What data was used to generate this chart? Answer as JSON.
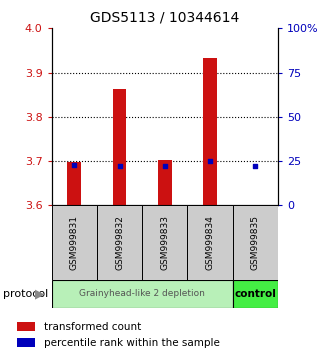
{
  "title": "GDS5113 / 10344614",
  "samples": [
    "GSM999831",
    "GSM999832",
    "GSM999833",
    "GSM999834",
    "GSM999835"
  ],
  "transformed_counts": [
    3.697,
    3.862,
    3.703,
    3.934,
    3.601
  ],
  "bar_bottom": 3.6,
  "percentile_ranks": [
    23,
    22,
    22,
    25,
    22
  ],
  "ylim": [
    3.6,
    4.0
  ],
  "y_ticks_left": [
    3.6,
    3.7,
    3.8,
    3.9,
    4.0
  ],
  "y_ticks_right_vals": [
    0,
    25,
    50,
    75,
    100
  ],
  "y_ticks_right_labels": [
    "0",
    "25",
    "50",
    "75",
    "100%"
  ],
  "group0_label": "Grainyhead-like 2 depletion",
  "group1_label": "control",
  "group0_color": "#b8f0b8",
  "group1_color": "#44ee44",
  "protocol_label": "protocol",
  "bar_color": "#cc1111",
  "percentile_color": "#0000bb",
  "legend_label_0": "transformed count",
  "legend_label_1": "percentile rank within the sample",
  "sample_box_color": "#cccccc",
  "bar_width": 0.3
}
